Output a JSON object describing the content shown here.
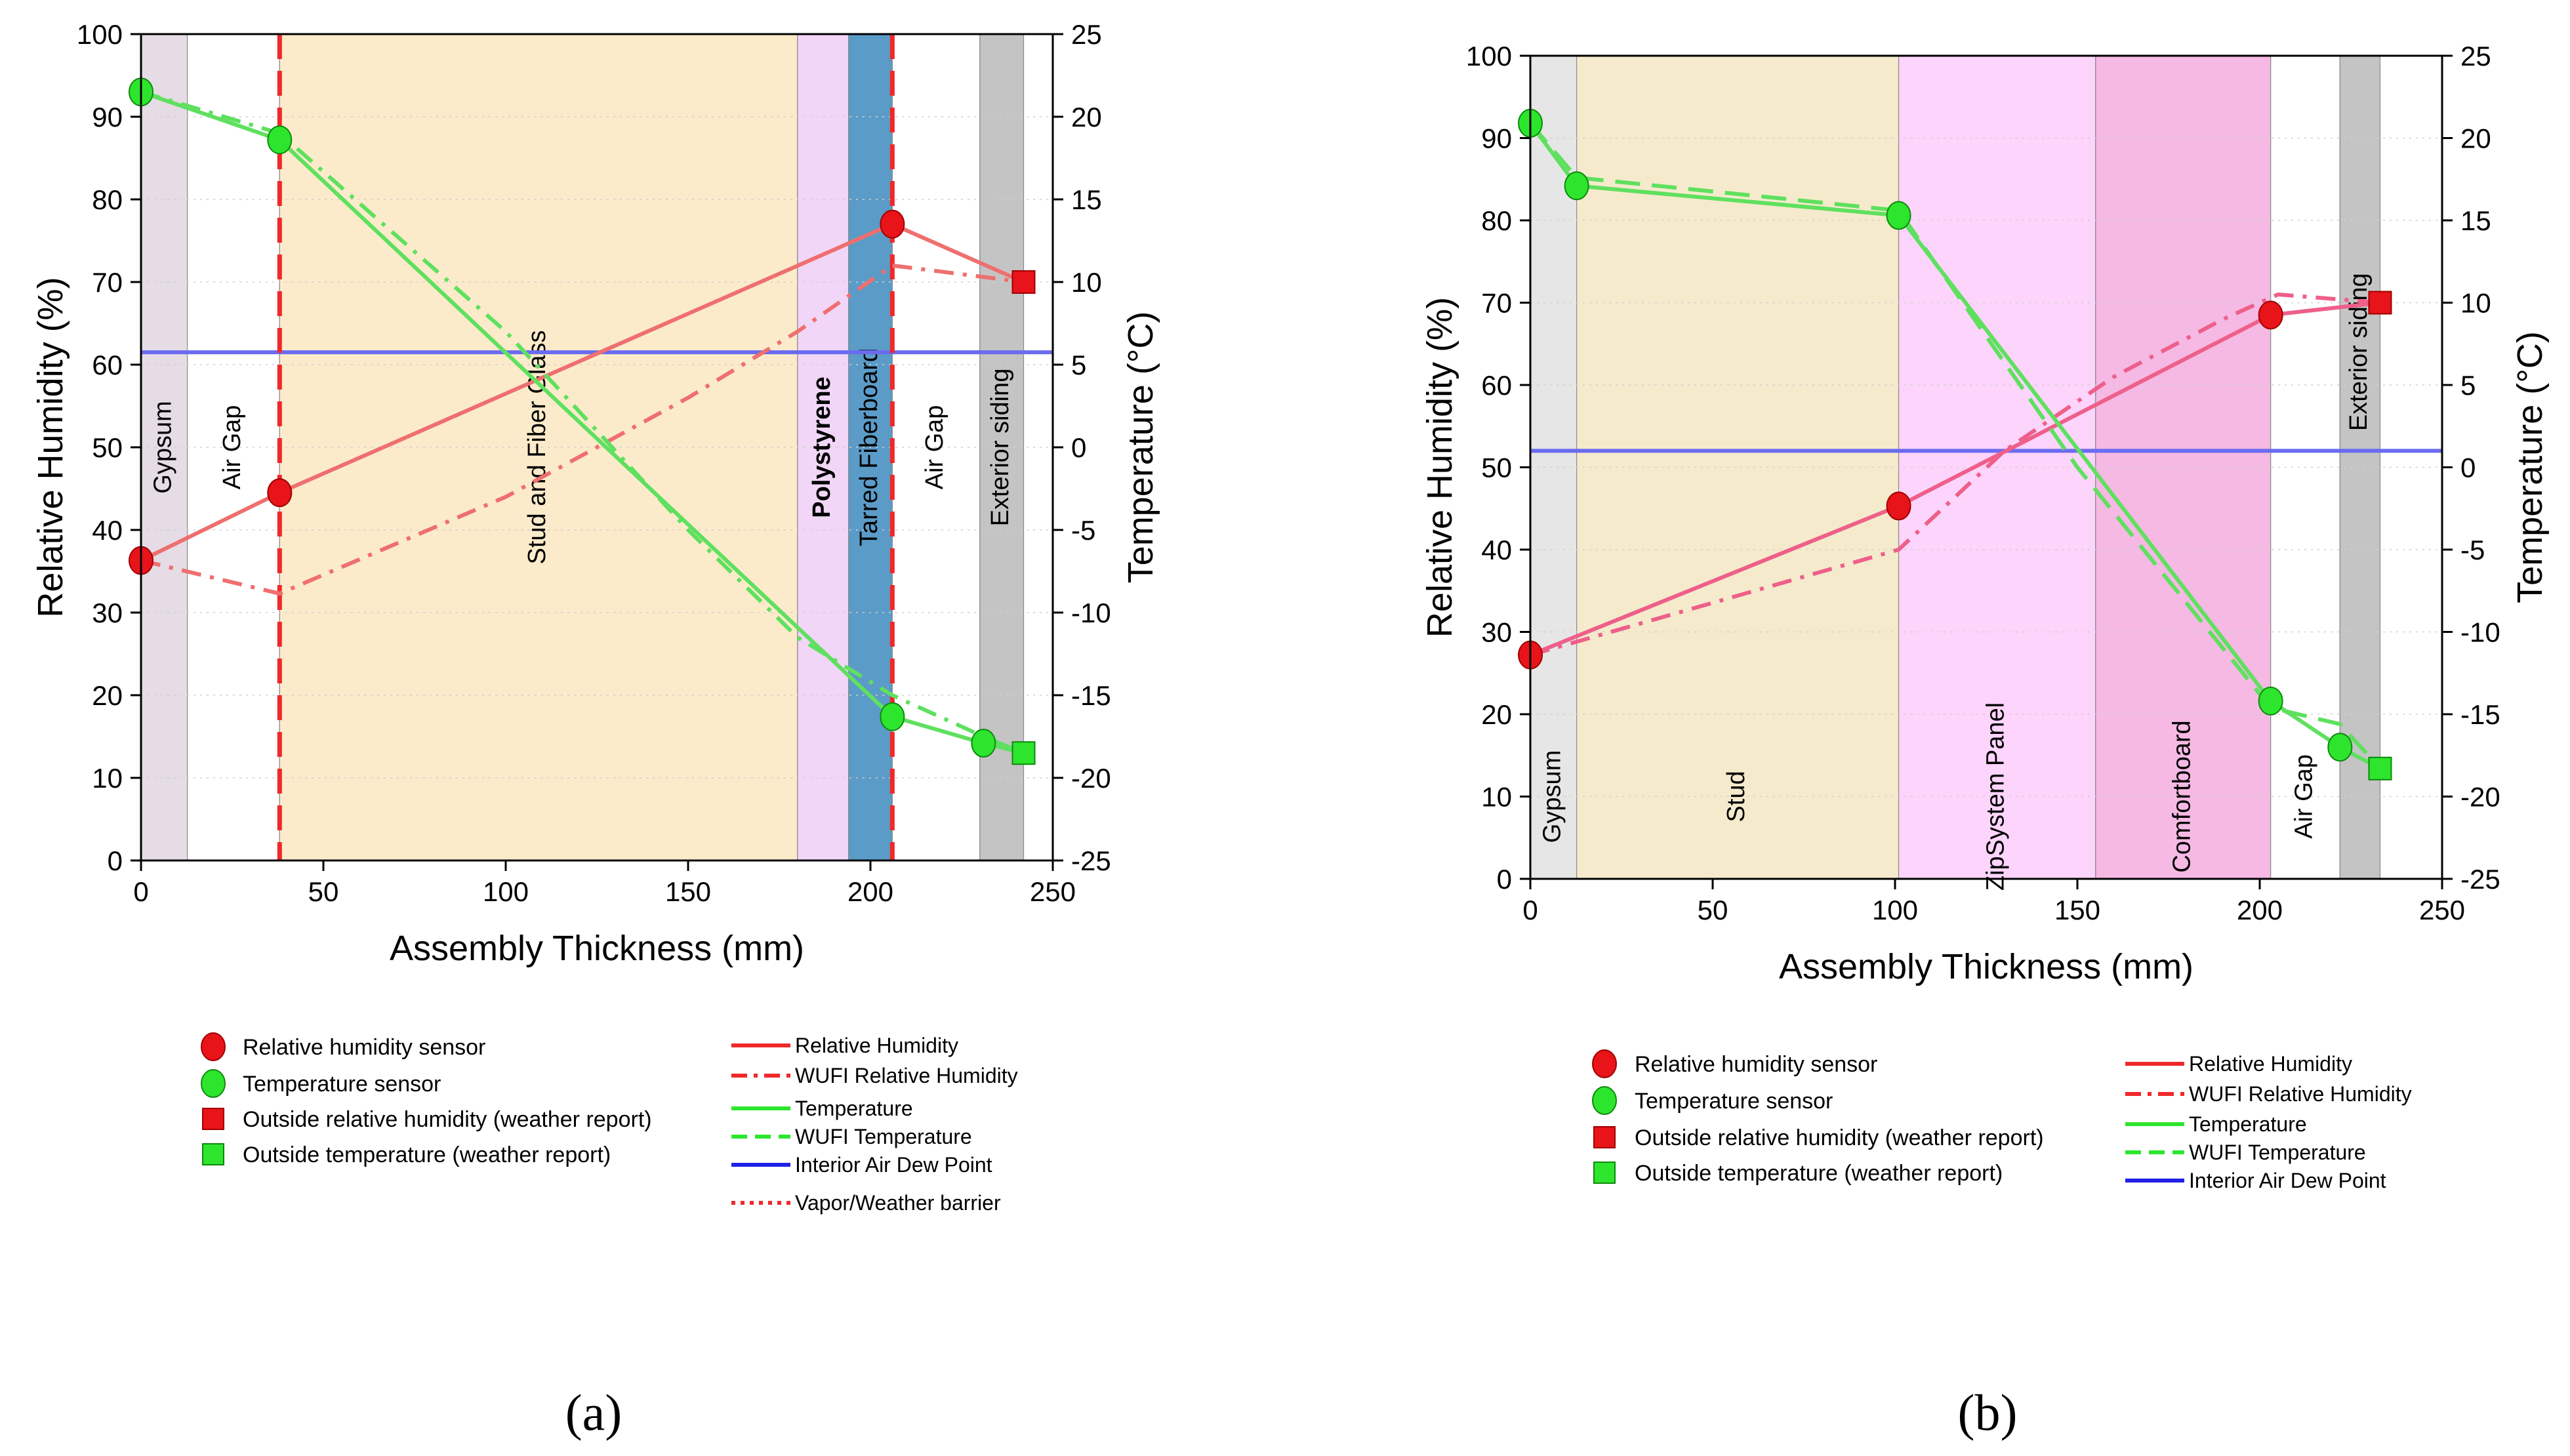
{
  "chart_data": [
    {
      "id": "a",
      "type": "line",
      "caption": "(a)",
      "xlabel": "Assembly Thickness (mm)",
      "ylabel": "Relative Humidity (%)",
      "y2label": "Temperature (°C)",
      "xlim": [
        0,
        250
      ],
      "ylim": [
        0,
        100
      ],
      "y2lim": [
        -25,
        25
      ],
      "xticks": [
        0,
        50,
        100,
        150,
        200,
        250
      ],
      "yticks": [
        0,
        10,
        20,
        30,
        40,
        50,
        60,
        70,
        80,
        90,
        100
      ],
      "y2ticks": [
        -25,
        -20,
        -15,
        -10,
        -5,
        0,
        5,
        10,
        15,
        20,
        25
      ],
      "layers": [
        {
          "name": "Gypsum",
          "from": 0,
          "to": 12.7,
          "color": "#e5dce6",
          "vertical": true,
          "pos": 0.5,
          "bold": false
        },
        {
          "name": "Air Gap",
          "from": 12.7,
          "to": 38,
          "color": "#ffffff",
          "vertical": true,
          "pos": 0.5,
          "bold": false
        },
        {
          "name": "Stud and Fiber Glass",
          "from": 38,
          "to": 180,
          "color": "#fcebcb",
          "vertical": true,
          "pos": 0.5,
          "bold": false
        },
        {
          "name": "Polystyrene",
          "from": 180,
          "to": 194,
          "color": "#f1d6f7",
          "vertical": true,
          "pos": 0.5,
          "bold": true
        },
        {
          "name": "Tarred Fiberboard",
          "from": 194,
          "to": 206,
          "color": "#5b9bc8",
          "vertical": true,
          "pos": 0.5,
          "bold": false
        },
        {
          "name": "Air Gap",
          "from": 206,
          "to": 230,
          "color": "#ffffff",
          "vertical": true,
          "pos": 0.5,
          "bold": false
        },
        {
          "name": "Exterior siding",
          "from": 230,
          "to": 242,
          "color": "#c4c4c4",
          "vertical": true,
          "pos": 0.5,
          "bold": false
        }
      ],
      "barrier_lines": [
        38,
        206
      ],
      "dew_point": 61.5,
      "series": [
        {
          "name": "Relative Humidity",
          "axis": "y",
          "style": "solid",
          "color": "#ef6f6f",
          "x": [
            0,
            38,
            206,
            242
          ],
          "y": [
            36.3,
            44.5,
            77.0,
            70.0
          ]
        },
        {
          "name": "WUFI Relative Humidity",
          "axis": "y",
          "style": "dashdot",
          "color": "#ef6f6f",
          "x": [
            0,
            38,
            100,
            150,
            180,
            206,
            242
          ],
          "y": [
            36.3,
            32.3,
            44,
            56,
            64,
            72,
            70
          ]
        },
        {
          "name": "Temperature",
          "axis": "y2",
          "style": "solid",
          "color": "#5fe05f",
          "x": [
            0,
            38,
            206,
            231,
            242
          ],
          "y": [
            21.5,
            18.6,
            -16.3,
            -17.9,
            -18.5
          ]
        },
        {
          "name": "WUFI Temperature",
          "axis": "y2",
          "style": "dashdot",
          "color": "#5fe05f",
          "x": [
            0,
            38,
            100,
            150,
            180,
            206,
            231,
            242
          ],
          "y": [
            21.5,
            19,
            7,
            -5,
            -11.5,
            -15,
            -17.5,
            -18.5
          ]
        }
      ],
      "rh_sensors": {
        "x": [
          0,
          38,
          206
        ],
        "y": [
          36.3,
          44.5,
          77.0
        ]
      },
      "temp_sensors": {
        "x": [
          0,
          38,
          206,
          231
        ],
        "y": [
          21.5,
          18.6,
          -16.3,
          -17.9
        ]
      },
      "outside_rh": {
        "x": 242,
        "y": 70.0
      },
      "outside_temp": {
        "x": 242,
        "y": -18.5
      },
      "legend_markers": [
        "Relative humidity sensor",
        "Temperature sensor",
        "Outside relative humidity (weather report)",
        "Outside temperature (weather report)"
      ],
      "legend_lines": [
        "Relative Humidity",
        "WUFI Relative Humidity",
        "Temperature",
        "WUFI Temperature",
        "Interior Air Dew Point",
        "Vapor/Weather barrier"
      ]
    },
    {
      "id": "b",
      "type": "line",
      "caption": "(b)",
      "xlabel": "Assembly Thickness (mm)",
      "ylabel": "Relative Humidity (%)",
      "y2label": "Temperature (°C)",
      "xlim": [
        0,
        250
      ],
      "ylim": [
        0,
        100
      ],
      "y2lim": [
        -25,
        25
      ],
      "xticks": [
        0,
        50,
        100,
        150,
        200,
        250
      ],
      "yticks": [
        0,
        10,
        20,
        30,
        40,
        50,
        60,
        70,
        80,
        90,
        100
      ],
      "y2ticks": [
        -25,
        -20,
        -15,
        -10,
        -5,
        0,
        5,
        10,
        15,
        20,
        25
      ],
      "layers": [
        {
          "name": "Gypsum",
          "from": 0,
          "to": 12.7,
          "color": "#e6e6e6",
          "vertical": true,
          "pos": 0.1,
          "bold": false
        },
        {
          "name": "Stud",
          "from": 12.7,
          "to": 101,
          "color": "#f5ebcc",
          "vertical": true,
          "pos": 0.1,
          "bold": false
        },
        {
          "name": "ZipSystem Panel",
          "from": 101,
          "to": 155,
          "color": "#fdd4fb",
          "vertical": true,
          "pos": 0.1,
          "bold": false
        },
        {
          "name": "Comfortboard",
          "from": 155,
          "to": 203,
          "color": "#f5b9e4",
          "vertical": true,
          "pos": 0.1,
          "bold": false
        },
        {
          "name": "Air Gap",
          "from": 203,
          "to": 222,
          "color": "#ffffff",
          "vertical": true,
          "pos": 0.1,
          "bold": false
        },
        {
          "name": "Exterior siding",
          "from": 222,
          "to": 233,
          "color": "#c4c4c4",
          "vertical": true,
          "pos": 0.64,
          "bold": false
        }
      ],
      "barrier_lines": [],
      "dew_point": 52.0,
      "series": [
        {
          "name": "Relative Humidity",
          "axis": "y",
          "style": "solid",
          "color": "#ee5f8a",
          "x": [
            0,
            101,
            203,
            233
          ],
          "y": [
            27.2,
            45.3,
            68.5,
            70.0
          ]
        },
        {
          "name": "WUFI Relative Humidity",
          "axis": "y",
          "style": "dashdot",
          "color": "#ee5f8a",
          "x": [
            0,
            101,
            130,
            160,
            190,
            205,
            233
          ],
          "y": [
            27.2,
            40,
            52,
            61,
            68,
            71,
            70
          ]
        },
        {
          "name": "Temperature",
          "axis": "y2",
          "style": "solid",
          "color": "#5fe05f",
          "x": [
            0,
            12.7,
            101,
            203,
            222,
            233
          ],
          "y": [
            20.9,
            17.1,
            15.3,
            -14.2,
            -17.0,
            -18.3
          ]
        },
        {
          "name": "WUFI Temperature",
          "axis": "y2",
          "style": "dash",
          "color": "#5fe05f",
          "x": [
            0,
            12.7,
            101,
            150,
            203,
            222,
            233
          ],
          "y": [
            20.9,
            17.6,
            15.6,
            0,
            -14.6,
            -15.6,
            -18.3
          ]
        }
      ],
      "rh_sensors": {
        "x": [
          0,
          101,
          203
        ],
        "y": [
          27.2,
          45.3,
          68.5
        ]
      },
      "temp_sensors": {
        "x": [
          0,
          12.7,
          101,
          203,
          222
        ],
        "y": [
          20.9,
          17.1,
          15.3,
          -14.2,
          -17.0
        ]
      },
      "outside_rh": {
        "x": 233,
        "y": 70.0
      },
      "outside_temp": {
        "x": 233,
        "y": -18.3
      },
      "legend_markers": [
        "Relative humidity sensor",
        "Temperature sensor",
        "Outside relative humidity (weather report)",
        "Outside temperature (weather report)"
      ],
      "legend_lines": [
        "Relative Humidity",
        "WUFI Relative Humidity",
        "Temperature",
        "WUFI Temperature",
        "Interior Air Dew Point"
      ]
    }
  ]
}
